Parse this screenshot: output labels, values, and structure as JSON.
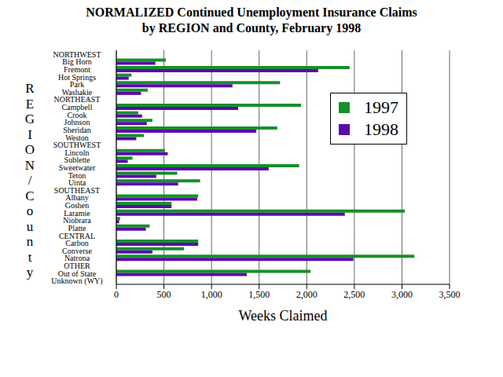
{
  "chart_data": {
    "type": "bar",
    "orientation": "horizontal",
    "title": "NORMALIZED Continued Unemployment Insurance Claims",
    "subtitle": "by REGION and County, February 1998",
    "x_label": "Weeks Claimed",
    "y_label": "REGION/County",
    "categories": [
      "NORTHWEST",
      "Big Horn",
      "Fremont",
      "Hot Springs",
      "Park",
      "Washakie",
      "NORTHEAST",
      "Campbell",
      "Crook",
      "Johnson",
      "Sheridan",
      "Weston",
      "SOUTHWEST",
      "Lincoln",
      "Sublette",
      "Sweetwater",
      "Teton",
      "Uinta",
      "SOUTHEAST",
      "Albany",
      "Goshen",
      "Laramie",
      "Niobrara",
      "Platte",
      "CENTRAL",
      "Carbon",
      "Converse",
      "Natrona",
      "OTHER",
      "Out of State",
      "Unknown (WY)"
    ],
    "series": [
      {
        "name": "1997",
        "color": "#16902a",
        "values": [
          null,
          520,
          2450,
          160,
          1720,
          330,
          null,
          1940,
          230,
          380,
          1690,
          290,
          null,
          510,
          170,
          1920,
          640,
          880,
          null,
          860,
          580,
          3030,
          40,
          350,
          null,
          860,
          710,
          3130,
          null,
          2040,
          0
        ]
      },
      {
        "name": "1998",
        "color": "#5a0cab",
        "values": [
          null,
          410,
          2120,
          130,
          1220,
          260,
          null,
          1280,
          270,
          320,
          1470,
          210,
          null,
          540,
          120,
          1600,
          420,
          650,
          null,
          850,
          580,
          2400,
          30,
          310,
          null,
          860,
          380,
          2490,
          null,
          1370,
          0
        ]
      }
    ],
    "xlim": [
      0,
      3500
    ],
    "xticks": [
      0,
      500,
      {
        "value": 1000,
        "label": "1,000"
      },
      {
        "value": 1500,
        "label": "1,500"
      },
      {
        "value": 2000,
        "label": "2,000"
      },
      {
        "value": 2500,
        "label": "2,500"
      },
      {
        "value": 3000,
        "label": "3,000"
      },
      {
        "value": 3500,
        "label": "3,500"
      }
    ],
    "grid": true,
    "legend": "right"
  }
}
